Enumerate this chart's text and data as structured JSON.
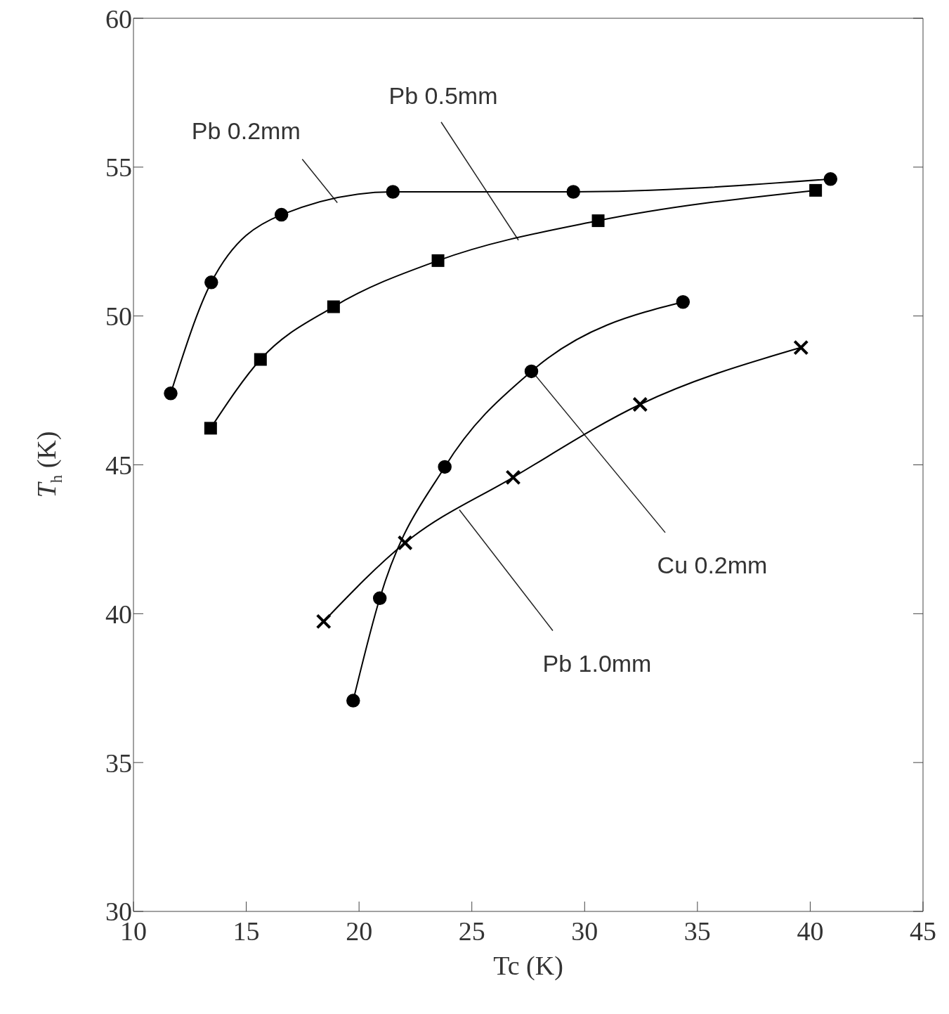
{
  "chart_data": {
    "type": "line",
    "xlabel": "Tc (K)",
    "ylabel": "T$_{h}$ (K)",
    "xlim": [
      10,
      45
    ],
    "xticks": [
      10,
      15,
      20,
      25,
      30,
      35,
      40,
      45
    ],
    "ylim": [
      30,
      60
    ],
    "yticks": [
      30,
      35,
      40,
      45,
      50,
      55,
      60
    ],
    "grid": false,
    "line_style": "solid",
    "series": [
      {
        "name": "Pb 0.2mm",
        "color": "#000000",
        "marker": "circle",
        "x": [
          11.65,
          13.45,
          16.56,
          21.5,
          29.5,
          40.9
        ],
        "values": [
          47.4,
          51.13,
          53.4,
          54.17,
          54.17,
          54.6
        ]
      },
      {
        "name": "Pb 0.5mm",
        "color": "#000000",
        "marker": "square",
        "x": [
          13.42,
          15.63,
          18.87,
          23.5,
          30.6,
          40.24
        ],
        "values": [
          46.23,
          48.54,
          50.31,
          51.86,
          53.2,
          54.22
        ]
      },
      {
        "name": "Cu 0.2mm",
        "color": "#000000",
        "marker": "circle",
        "x": [
          19.74,
          20.92,
          23.8,
          27.64,
          34.36
        ],
        "values": [
          37.08,
          40.52,
          44.93,
          48.14,
          50.47
        ]
      },
      {
        "name": "Pb 1.0mm",
        "color": "#000000",
        "marker": "cross",
        "x": [
          18.43,
          22.04,
          26.83,
          32.46,
          39.59
        ],
        "values": [
          39.74,
          42.38,
          44.58,
          47.03,
          48.94
        ]
      }
    ]
  }
}
